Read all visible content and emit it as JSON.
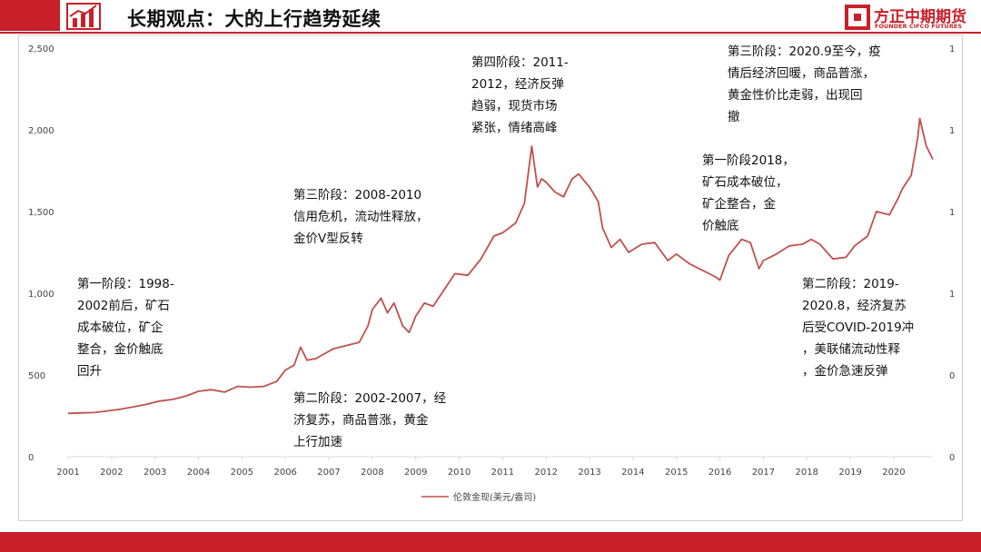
{
  "header": {
    "title": "长期观点：大的上行趋势延续"
  },
  "brand": {
    "name_cn": "方正中期期货",
    "name_en": "FOUNDER CIFCO FUTURES"
  },
  "colors": {
    "accent": "#c8202a",
    "series": "#c0504d"
  },
  "chart_data": {
    "type": "line",
    "title": "",
    "xlabel": "",
    "ylabel": "",
    "xlim": [
      2001,
      2020.9
    ],
    "ylim": [
      0,
      2500
    ],
    "yticks": [
      "0",
      "500",
      "1,000",
      "1,500",
      "2,000",
      "2,500"
    ],
    "xticks": [
      "2001",
      "2002",
      "2003",
      "2004",
      "2005",
      "2006",
      "2007",
      "2008",
      "2009",
      "2010",
      "2011",
      "2012",
      "2013",
      "2014",
      "2015",
      "2016",
      "2017",
      "2018",
      "2019",
      "2020"
    ],
    "y2ticks": [
      "0",
      "0",
      "1",
      "1",
      "1",
      "1"
    ],
    "grid": false,
    "legend_position": "bottom",
    "series": [
      {
        "name": "伦敦金现(美元/盎司)",
        "x": [
          2001.0,
          2001.3,
          2001.6,
          2001.9,
          2002.2,
          2002.5,
          2002.8,
          2003.1,
          2003.4,
          2003.7,
          2004.0,
          2004.3,
          2004.6,
          2004.9,
          2005.2,
          2005.5,
          2005.8,
          2006.0,
          2006.2,
          2006.35,
          2006.5,
          2006.7,
          2006.9,
          2007.1,
          2007.4,
          2007.7,
          2007.9,
          2008.0,
          2008.2,
          2008.35,
          2008.5,
          2008.7,
          2008.85,
          2009.0,
          2009.2,
          2009.4,
          2009.6,
          2009.9,
          2010.2,
          2010.5,
          2010.8,
          2011.0,
          2011.3,
          2011.5,
          2011.67,
          2011.8,
          2011.9,
          2012.0,
          2012.2,
          2012.4,
          2012.6,
          2012.75,
          2012.9,
          2013.0,
          2013.2,
          2013.3,
          2013.5,
          2013.7,
          2013.9,
          2014.2,
          2014.5,
          2014.8,
          2015.0,
          2015.3,
          2015.6,
          2015.9,
          2016.0,
          2016.2,
          2016.5,
          2016.7,
          2016.9,
          2017.0,
          2017.3,
          2017.6,
          2017.9,
          2018.1,
          2018.3,
          2018.6,
          2018.9,
          2019.1,
          2019.4,
          2019.6,
          2019.9,
          2020.1,
          2020.2,
          2020.4,
          2020.55,
          2020.6,
          2020.75,
          2020.9
        ],
        "y": [
          265,
          268,
          270,
          280,
          290,
          305,
          320,
          340,
          350,
          370,
          400,
          410,
          395,
          430,
          425,
          430,
          460,
          530,
          560,
          670,
          590,
          600,
          630,
          660,
          680,
          700,
          800,
          900,
          970,
          880,
          940,
          800,
          760,
          860,
          940,
          920,
          1000,
          1120,
          1110,
          1210,
          1350,
          1370,
          1430,
          1550,
          1900,
          1650,
          1700,
          1680,
          1620,
          1590,
          1700,
          1730,
          1680,
          1650,
          1560,
          1400,
          1280,
          1330,
          1250,
          1300,
          1310,
          1200,
          1240,
          1180,
          1140,
          1100,
          1080,
          1230,
          1330,
          1310,
          1150,
          1200,
          1240,
          1290,
          1300,
          1330,
          1300,
          1210,
          1220,
          1290,
          1350,
          1500,
          1480,
          1580,
          1640,
          1720,
          1950,
          2070,
          1900,
          1820
        ]
      }
    ],
    "annotations": [
      "第一阶段：1998-\n2002前后，矿石\n成本破位，矿企\n整合，金价触底\n回升",
      "第二阶段：2002-2007，经\n济复苏，商品普涨，黄金\n上行加速",
      "第三阶段：2008-2010\n信用危机，流动性释放，\n金价V型反转",
      "第四阶段：2011-\n2012，经济反弹\n趋弱，现货市场\n紧张，情绪高峰",
      "第一阶段2018，\n矿石成本破位，\n矿企整合，金\n价触底",
      "第三阶段：2020.9至今，疫\n情后经济回暖，商品普涨，\n黄金性价比走弱，出现回\n撤",
      "第二阶段：2019-\n2020.8，经济复苏\n后受COVID-2019冲\n，美联储流动性释\n，金价急速反弹"
    ]
  }
}
